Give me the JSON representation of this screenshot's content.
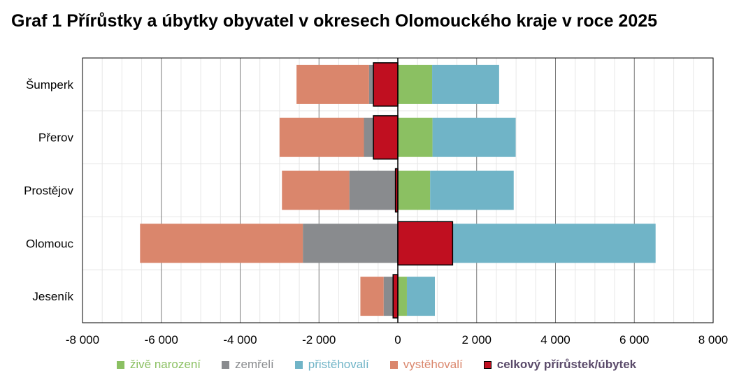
{
  "title": "Graf 1 Přírůstky a úbytky obyvatel v okresech Olomouckého kraje v roce 2025",
  "chart_data": {
    "type": "bar",
    "orientation": "horizontal",
    "stacked": true,
    "title": "Graf 1 Přírůstky a úbytky obyvatel v okresech Olomouckého kraje v roce 2025",
    "categories": [
      "Šumperk",
      "Přerov",
      "Prostějov",
      "Olomouc",
      "Jeseník"
    ],
    "xlim": [
      -8000,
      8000
    ],
    "xticks": [
      -8000,
      -6000,
      -4000,
      -2000,
      0,
      2000,
      4000,
      6000,
      8000
    ],
    "xtick_labels": [
      "-8 000",
      "-6 000",
      "-4 000",
      "-2 000",
      "0",
      "2 000",
      "4 000",
      "6 000",
      "8 000"
    ],
    "grid": true,
    "legend_position": "bottom",
    "series": [
      {
        "name": "živě narození",
        "color": "#8bc062",
        "values": [
          870,
          880,
          820,
          400,
          230
        ]
      },
      {
        "name": "zemřelí",
        "color": "#898b8e",
        "values": [
          -730,
          -860,
          -1230,
          -2410,
          -360
        ]
      },
      {
        "name": "přistěhovalí",
        "color": "#70b4c7",
        "values": [
          1700,
          2110,
          2120,
          6140,
          710
        ]
      },
      {
        "name": "vystěhovalí",
        "color": "#da866c",
        "values": [
          -1840,
          -2140,
          -1710,
          -4130,
          -590
        ]
      },
      {
        "name": "celkový přírůstek/úbytek",
        "color": "#c00f20",
        "values": [
          -620,
          -620,
          -60,
          1390,
          -120
        ]
      }
    ]
  }
}
